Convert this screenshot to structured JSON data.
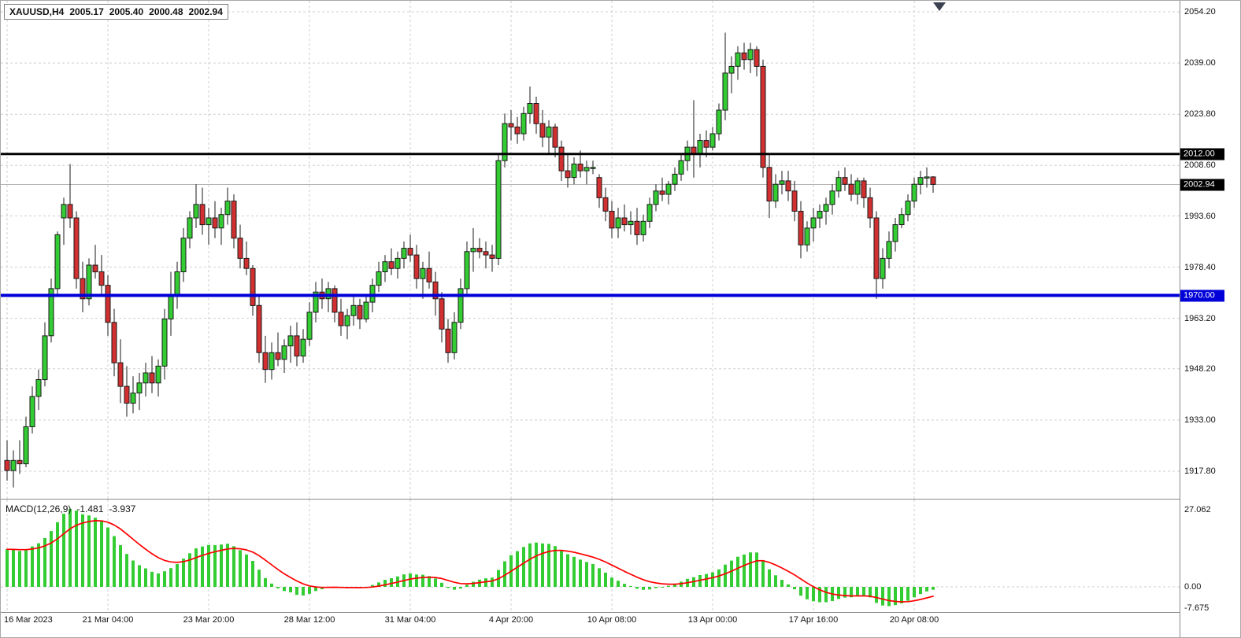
{
  "header": {
    "symbol_timeframe": "XAUUSD,H4",
    "open": "2005.17",
    "high": "2005.40",
    "low": "2000.48",
    "close": "2002.94"
  },
  "indicator": {
    "label": "MACD(12,26,9)",
    "main_value": "-1.481",
    "signal_value": "-3.937",
    "axis": {
      "top": "27.062",
      "zero": "0.00",
      "bottom": "-7.675"
    }
  },
  "price_axis": {
    "labels": [
      {
        "text": "2054.20",
        "price": 2054.2
      },
      {
        "text": "2039.00",
        "price": 2039.0
      },
      {
        "text": "2023.80",
        "price": 2023.8
      },
      {
        "text": "2008.60",
        "price": 2008.6
      },
      {
        "text": "1993.60",
        "price": 1993.6
      },
      {
        "text": "1978.40",
        "price": 1978.4
      },
      {
        "text": "1963.20",
        "price": 1963.2
      },
      {
        "text": "1948.20",
        "price": 1948.2
      },
      {
        "text": "1933.00",
        "price": 1933.0
      },
      {
        "text": "1917.80",
        "price": 1917.8
      }
    ],
    "badges": [
      {
        "text": "2012.00",
        "price": 2012.0,
        "style": "black"
      },
      {
        "text": "2002.94",
        "price": 2002.94,
        "style": "black"
      },
      {
        "text": "1970.00",
        "price": 1970.0,
        "style": "blue"
      }
    ]
  },
  "colors": {
    "bull": "#33cc33",
    "bear": "#d23030",
    "outline": "#1a1a1a",
    "grid": "#cfcfcf",
    "macd_histogram": "#33cc33",
    "macd_signal": "#ff0000",
    "current_price_line": "#b4b4b4"
  },
  "chart_data": {
    "type": "candlestick",
    "symbol": "XAUUSD",
    "timeframe": "H4",
    "y_axis": {
      "top": 2054.2,
      "bottom": 1917.8
    },
    "current_price": 2002.94,
    "horizontal_lines": [
      {
        "price": 2012.0,
        "label": "2012.00",
        "color": "#000000",
        "width": 3
      },
      {
        "price": 1970.0,
        "label": "1970.00",
        "color": "#0000d8",
        "width": 4
      }
    ],
    "x_labels": [
      {
        "index": 0,
        "text": "16 Mar 2023"
      },
      {
        "index": 16,
        "text": "21 Mar 04:00"
      },
      {
        "index": 32,
        "text": "23 Mar 20:00"
      },
      {
        "index": 48,
        "text": "28 Mar 12:00"
      },
      {
        "index": 64,
        "text": "31 Mar 04:00"
      },
      {
        "index": 80,
        "text": "4 Apr 20:00"
      },
      {
        "index": 96,
        "text": "10 Apr 08:00"
      },
      {
        "index": 112,
        "text": "13 Apr 00:00"
      },
      {
        "index": 128,
        "text": "17 Apr 16:00"
      },
      {
        "index": 144,
        "text": "20 Apr 08:00"
      }
    ],
    "indicator": {
      "name": "MACD",
      "params": [
        12,
        26,
        9
      ],
      "main": -1.481,
      "signal": -3.937,
      "scale": {
        "max": 27.062,
        "zero": 0.0,
        "min": -7.675
      }
    },
    "candles": [
      [
        1921,
        1927,
        1915,
        1918
      ],
      [
        1918,
        1924,
        1913,
        1921
      ],
      [
        1921,
        1927,
        1917,
        1920
      ],
      [
        1920,
        1934,
        1919,
        1931
      ],
      [
        1931,
        1943,
        1929,
        1940
      ],
      [
        1940,
        1948,
        1936,
        1945
      ],
      [
        1945,
        1962,
        1943,
        1958
      ],
      [
        1958,
        1975,
        1956,
        1972
      ],
      [
        1972,
        1989,
        1970,
        1988
      ],
      [
        1993,
        1999,
        1985,
        1997
      ],
      [
        1997,
        2009,
        1990,
        1993
      ],
      [
        1993,
        1995,
        1972,
        1975
      ],
      [
        1975,
        1980,
        1965,
        1969
      ],
      [
        1969,
        1981,
        1967,
        1979
      ],
      [
        1979,
        1985,
        1975,
        1977
      ],
      [
        1977,
        1982,
        1970,
        1973
      ],
      [
        1973,
        1976,
        1958,
        1962
      ],
      [
        1962,
        1966,
        1946,
        1950
      ],
      [
        1950,
        1957,
        1938,
        1943
      ],
      [
        1943,
        1949,
        1934,
        1938
      ],
      [
        1938,
        1946,
        1935,
        1941
      ],
      [
        1941,
        1947,
        1936,
        1944
      ],
      [
        1944,
        1950,
        1940,
        1947
      ],
      [
        1947,
        1952,
        1941,
        1944
      ],
      [
        1944,
        1951,
        1940,
        1949
      ],
      [
        1949,
        1966,
        1945,
        1963
      ],
      [
        1963,
        1977,
        1958,
        1970
      ],
      [
        1970,
        1980,
        1966,
        1977
      ],
      [
        1977,
        1990,
        1974,
        1987
      ],
      [
        1987,
        1995,
        1984,
        1993
      ],
      [
        1993,
        2003,
        1990,
        1997
      ],
      [
        1997,
        2002,
        1988,
        1991
      ],
      [
        1991,
        1996,
        1985,
        1993
      ],
      [
        1993,
        1998,
        1987,
        1990
      ],
      [
        1990,
        1996,
        1985,
        1994
      ],
      [
        1994,
        2002,
        1991,
        1998
      ],
      [
        1998,
        2000,
        1984,
        1987
      ],
      [
        1987,
        1991,
        1978,
        1981
      ],
      [
        1981,
        1986,
        1976,
        1978
      ],
      [
        1978,
        1979,
        1964,
        1967
      ],
      [
        1967,
        1970,
        1950,
        1953
      ],
      [
        1953,
        1958,
        1944,
        1948
      ],
      [
        1948,
        1956,
        1945,
        1953
      ],
      [
        1953,
        1959,
        1949,
        1951
      ],
      [
        1951,
        1957,
        1947,
        1955
      ],
      [
        1955,
        1961,
        1950,
        1958
      ],
      [
        1958,
        1962,
        1949,
        1952
      ],
      [
        1952,
        1960,
        1950,
        1957
      ],
      [
        1957,
        1968,
        1955,
        1965
      ],
      [
        1965,
        1974,
        1962,
        1971
      ],
      [
        1971,
        1975,
        1966,
        1969
      ],
      [
        1969,
        1974,
        1965,
        1972
      ],
      [
        1972,
        1973,
        1962,
        1965
      ],
      [
        1965,
        1969,
        1958,
        1961
      ],
      [
        1961,
        1966,
        1957,
        1964
      ],
      [
        1964,
        1970,
        1961,
        1967
      ],
      [
        1967,
        1969,
        1960,
        1963
      ],
      [
        1963,
        1970,
        1962,
        1968
      ],
      [
        1968,
        1975,
        1965,
        1973
      ],
      [
        1973,
        1980,
        1971,
        1977
      ],
      [
        1977,
        1982,
        1974,
        1980
      ],
      [
        1980,
        1984,
        1976,
        1978
      ],
      [
        1978,
        1983,
        1975,
        1981
      ],
      [
        1981,
        1986,
        1978,
        1984
      ],
      [
        1984,
        1988,
        1980,
        1982
      ],
      [
        1982,
        1985,
        1972,
        1975
      ],
      [
        1975,
        1980,
        1969,
        1978
      ],
      [
        1978,
        1983,
        1972,
        1974
      ],
      [
        1974,
        1977,
        1964,
        1969
      ],
      [
        1969,
        1971,
        1956,
        1960
      ],
      [
        1960,
        1963,
        1950,
        1953
      ],
      [
        1953,
        1965,
        1951,
        1962
      ],
      [
        1962,
        1975,
        1960,
        1972
      ],
      [
        1972,
        1986,
        1970,
        1983
      ],
      [
        1983,
        1990,
        1977,
        1984
      ],
      [
        1984,
        1987,
        1981,
        1983
      ],
      [
        1983,
        1986,
        1978,
        1982
      ],
      [
        1982,
        1985,
        1977,
        1981
      ],
      [
        1981,
        2012,
        1979,
        2010
      ],
      [
        2010,
        2024,
        2008,
        2021
      ],
      [
        2021,
        2025,
        2016,
        2020
      ],
      [
        2020,
        2023,
        2015,
        2018
      ],
      [
        2018,
        2026,
        2016,
        2024
      ],
      [
        2024,
        2032,
        2021,
        2027
      ],
      [
        2027,
        2029,
        2018,
        2021
      ],
      [
        2021,
        2025,
        2014,
        2017
      ],
      [
        2017,
        2022,
        2012,
        2020
      ],
      [
        2020,
        2021,
        2011,
        2014
      ],
      [
        2014,
        2016,
        2004,
        2007
      ],
      [
        2007,
        2012,
        2002,
        2005
      ],
      [
        2005,
        2011,
        2003,
        2009
      ],
      [
        2009,
        2013,
        2005,
        2007
      ],
      [
        2007,
        2010,
        2003,
        2008
      ],
      [
        2008,
        2010,
        2006,
        2008
      ],
      [
        2005,
        2006,
        1996,
        1999
      ],
      [
        1999,
        2002,
        1992,
        1995
      ],
      [
        1995,
        1998,
        1987,
        1990
      ],
      [
        1990,
        1996,
        1987,
        1993
      ],
      [
        1993,
        1997,
        1989,
        1991
      ],
      [
        1991,
        1995,
        1988,
        1992
      ],
      [
        1992,
        1996,
        1985,
        1988
      ],
      [
        1988,
        1994,
        1986,
        1992
      ],
      [
        1992,
        1999,
        1990,
        1997
      ],
      [
        1997,
        2003,
        1995,
        2001
      ],
      [
        2001,
        2005,
        1998,
        2000
      ],
      [
        2000,
        2004,
        1997,
        2003
      ],
      [
        2003,
        2008,
        2001,
        2006
      ],
      [
        2006,
        2012,
        2004,
        2010
      ],
      [
        2010,
        2016,
        2007,
        2014
      ],
      [
        2014,
        2028,
        2005,
        2012
      ],
      [
        2012,
        2018,
        2008,
        2016
      ],
      [
        2016,
        2019,
        2011,
        2014
      ],
      [
        2014,
        2020,
        2013,
        2018
      ],
      [
        2018,
        2027,
        2016,
        2025
      ],
      [
        2025,
        2048,
        2022,
        2036
      ],
      [
        2036,
        2041,
        2030,
        2038
      ],
      [
        2038,
        2044,
        2034,
        2042
      ],
      [
        2042,
        2045,
        2037,
        2040
      ],
      [
        2040,
        2045,
        2036,
        2043
      ],
      [
        2043,
        2044,
        2035,
        2038
      ],
      [
        2038,
        2040,
        2005,
        2008
      ],
      [
        2008,
        2012,
        1993,
        1998
      ],
      [
        1998,
        2006,
        1996,
        2003
      ],
      [
        2003,
        2007,
        2000,
        2004
      ],
      [
        2004,
        2007,
        1998,
        2001
      ],
      [
        2001,
        2004,
        1992,
        1995
      ],
      [
        1995,
        1998,
        1981,
        1985
      ],
      [
        1985,
        1992,
        1983,
        1990
      ],
      [
        1990,
        1996,
        1986,
        1993
      ],
      [
        1993,
        1997,
        1990,
        1995
      ],
      [
        1995,
        1999,
        1991,
        1997
      ],
      [
        1997,
        2003,
        1994,
        2001
      ],
      [
        2001,
        2007,
        1999,
        2005
      ],
      [
        2005,
        2008,
        2001,
        2003
      ],
      [
        2003,
        2006,
        1998,
        2000
      ],
      [
        2000,
        2005,
        1997,
        2004
      ],
      [
        2004,
        2005,
        1996,
        1999
      ],
      [
        1999,
        2002,
        1990,
        1993
      ],
      [
        1993,
        1995,
        1969,
        1975
      ],
      [
        1975,
        1984,
        1972,
        1981
      ],
      [
        1981,
        1989,
        1978,
        1986
      ],
      [
        1986,
        1993,
        1983,
        1991
      ],
      [
        1991,
        1996,
        1990,
        1994
      ],
      [
        1994,
        2000,
        1992,
        1998
      ],
      [
        1998,
        2005,
        1996,
        2003
      ],
      [
        2003,
        2007,
        2000,
        2005
      ],
      [
        2005,
        2008,
        2002,
        2005.17
      ],
      [
        2005.17,
        2005.4,
        2000.48,
        2002.94
      ]
    ]
  }
}
